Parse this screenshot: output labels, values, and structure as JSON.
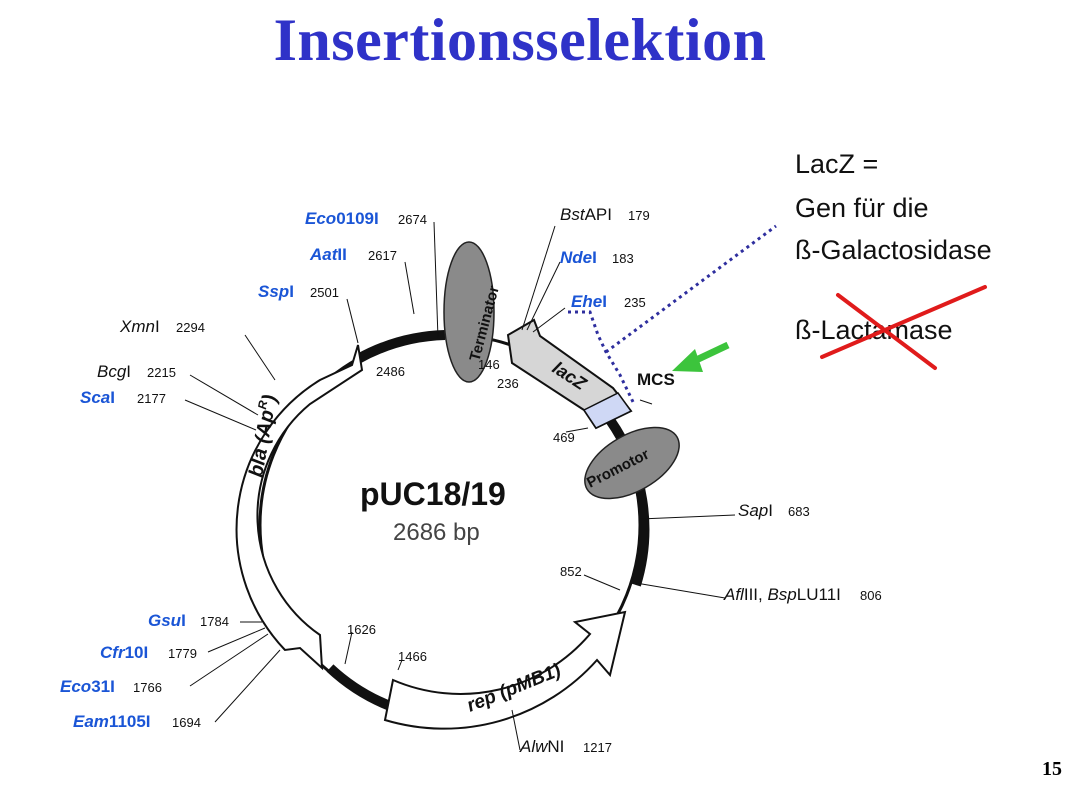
{
  "title": "Insertionsselektion",
  "page_number": "15",
  "plasmid": {
    "name": "pUC18/19",
    "size": "2686 bp"
  },
  "features": {
    "terminator": "Terminator",
    "promotor": "Promotor",
    "lacz": "lacZ",
    "mcs": "MCS",
    "bla": "bla (Ap",
    "bla_sup": "R",
    "bla_close": ")",
    "rep": "rep (pMB1)"
  },
  "notes": {
    "line1": "LacZ =",
    "line2": "Gen für die",
    "line3": "ß-Galactosidase",
    "line4": "ß-Lactamase"
  },
  "sites": [
    {
      "name_b": "Eco",
      "name_r": "0109I",
      "num": "2674",
      "color": "blue"
    },
    {
      "name_b": "Aat",
      "name_r": "II",
      "num": "2617",
      "color": "blue"
    },
    {
      "name_b": "Ssp",
      "name_r": "I",
      "num": "2501",
      "color": "blue"
    },
    {
      "name_b": "Xmn",
      "name_r": "I",
      "num": "2294",
      "color": "black"
    },
    {
      "name_b": "Bcg",
      "name_r": "I",
      "num": "2215",
      "color": "black"
    },
    {
      "name_b": "Sca",
      "name_r": "I",
      "num": "2177",
      "color": "blue"
    },
    {
      "name_b": "Gsu",
      "name_r": "I",
      "num": "1784",
      "color": "blue"
    },
    {
      "name_b": "Cfr",
      "name_r": "10I",
      "num": "1779",
      "color": "blue"
    },
    {
      "name_b": "Eco",
      "name_r": "31I",
      "num": "1766",
      "color": "blue"
    },
    {
      "name_b": "Eam",
      "name_r": "1105I",
      "num": "1694",
      "color": "blue"
    },
    {
      "name_b": "Bst",
      "name_r": "API",
      "num": "179",
      "color": "black"
    },
    {
      "name_b": "Nde",
      "name_r": "I",
      "num": "183",
      "color": "blue"
    },
    {
      "name_b": "Ehe",
      "name_r": "I",
      "num": "235",
      "color": "blue"
    },
    {
      "name_b": "Sap",
      "name_r": "I",
      "num": "683",
      "color": "black"
    },
    {
      "name_b": "Afl",
      "name_r": "III, ",
      "name_b2": "Bsp",
      "name_r2": "LU11I",
      "num": "806",
      "color": "black"
    },
    {
      "name_b": "Alw",
      "name_r": "NI",
      "num": "1217",
      "color": "black"
    }
  ],
  "inner_numbers": {
    "n2486": "2486",
    "n146": "146",
    "n236": "236",
    "n469": "469",
    "n852": "852",
    "n1626": "1626",
    "n1466": "1466"
  },
  "colors": {
    "title": "#2f32c8",
    "site_blue": "#1a55d6",
    "dotted": "#2e2e9e",
    "arrow_green": "#3cc43c",
    "cross_red": "#e01b1b",
    "ellipse": "#8a8a8a",
    "mcs_fill": "#cfd8f5"
  }
}
